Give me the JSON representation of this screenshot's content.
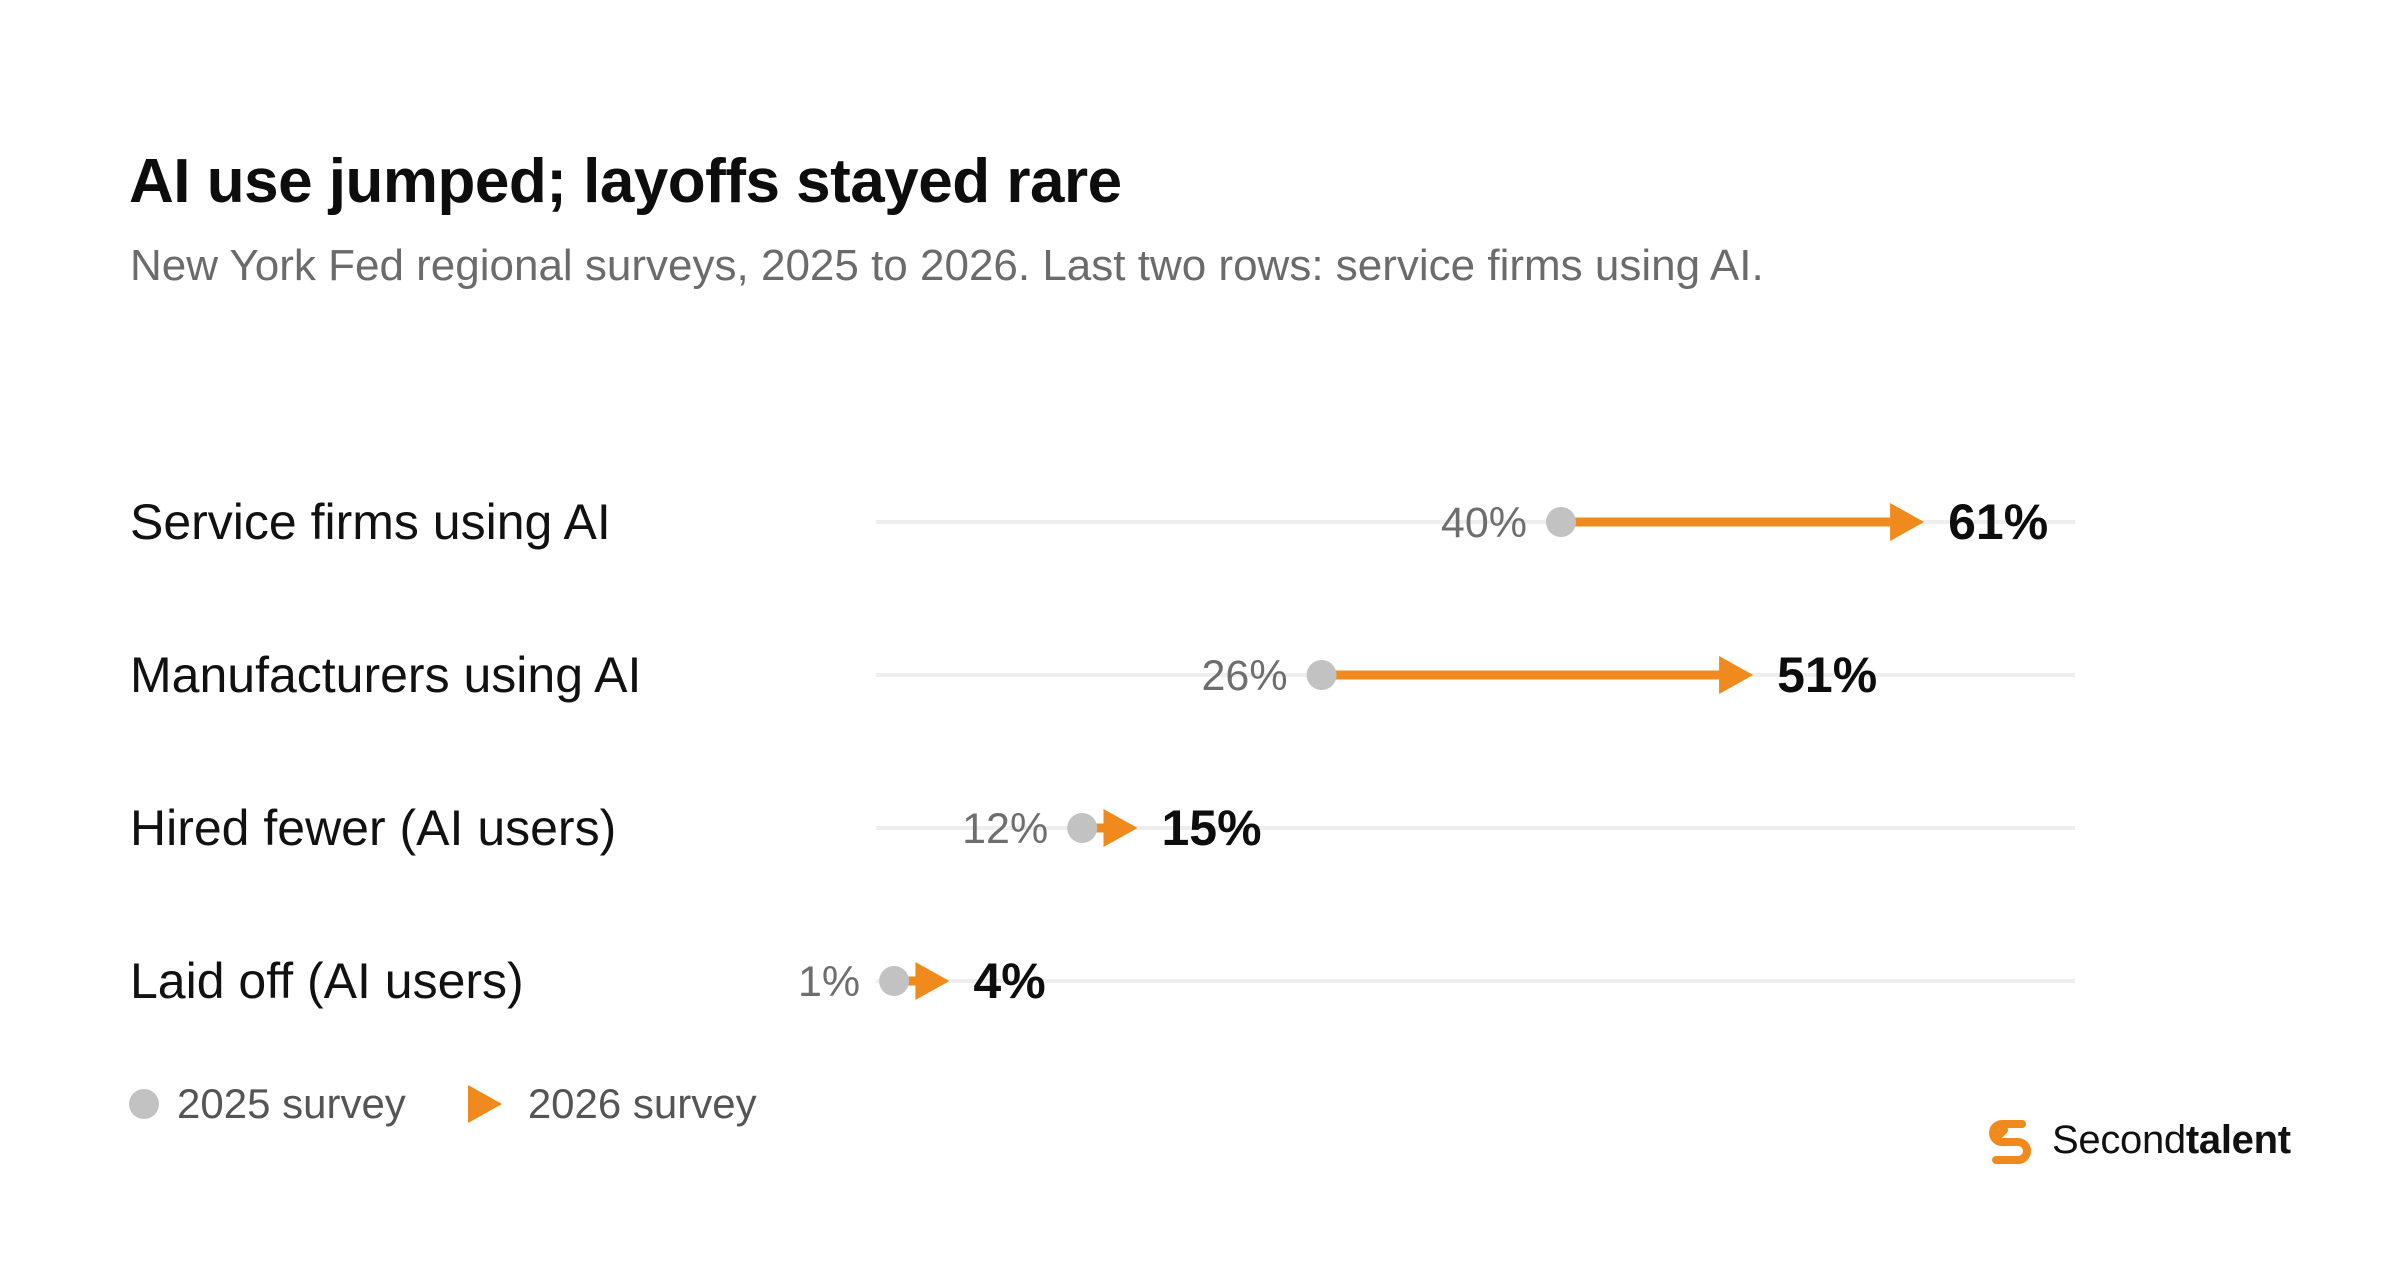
{
  "title": "AI use jumped; layoffs stayed rare",
  "subtitle": "New York Fed regional surveys, 2025 to 2026. Last two rows: service firms using AI.",
  "colors": {
    "start": "#c2c2c2",
    "end": "#f08a1c",
    "track": "#eeeeee"
  },
  "legend": {
    "start_label": "2025 survey",
    "end_label": "2026 survey"
  },
  "brand": {
    "name_regular": "Second",
    "name_bold": "talent",
    "icon": "secondtalent-logo-icon"
  },
  "chart_data": {
    "type": "dumbbell-arrow",
    "title": "AI use jumped; layoffs stayed rare",
    "subtitle": "New York Fed regional surveys, 2025 to 2026. Last two rows: service firms using AI.",
    "unit": "%",
    "xlim": [
      0,
      100
    ],
    "grid": false,
    "legend_position": "bottom-left",
    "series_names": [
      "2025 survey",
      "2026 survey"
    ],
    "rows": [
      {
        "label": "Service firms using AI",
        "start": 40,
        "end": 61,
        "start_label": "40%",
        "end_label": "61%"
      },
      {
        "label": "Manufacturers using AI",
        "start": 26,
        "end": 51,
        "start_label": "26%",
        "end_label": "51%"
      },
      {
        "label": "Hired fewer (AI users)",
        "start": 12,
        "end": 15,
        "start_label": "12%",
        "end_label": "15%"
      },
      {
        "label": "Laid off (AI users)",
        "start": 1,
        "end": 4,
        "start_label": "1%",
        "end_label": "4%"
      }
    ]
  }
}
